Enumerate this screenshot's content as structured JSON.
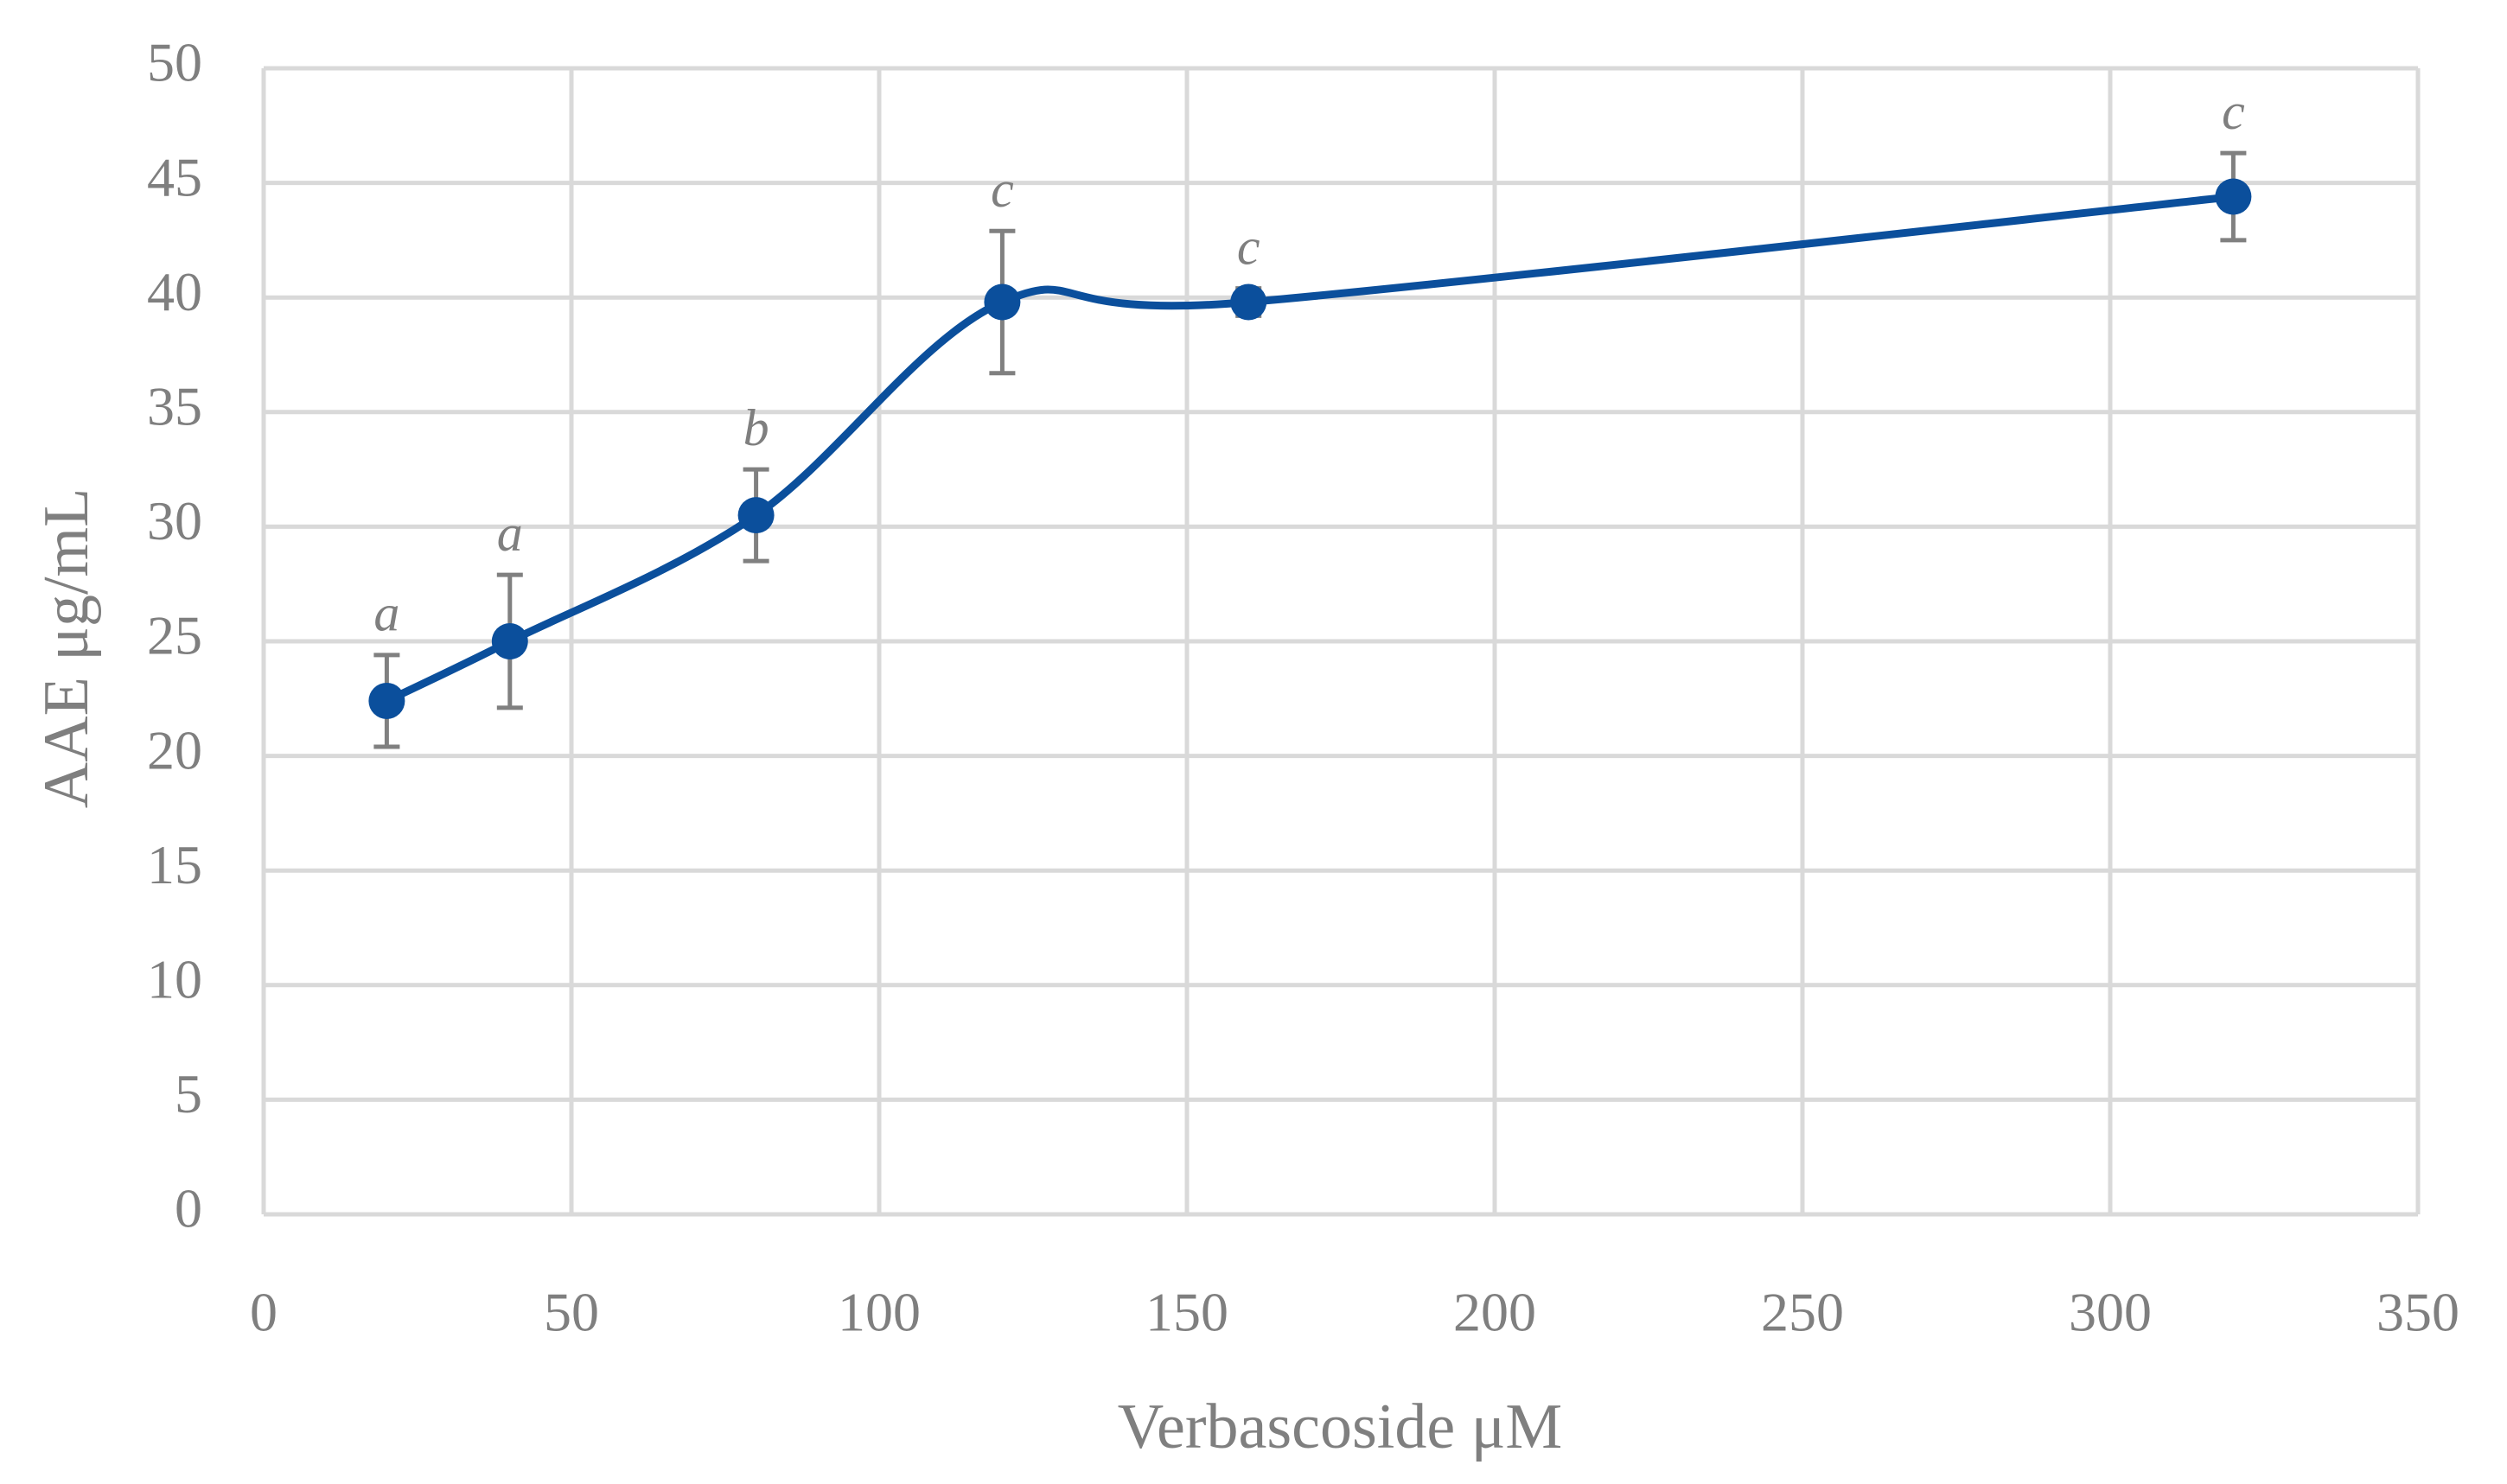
{
  "chart_data": {
    "type": "line",
    "smooth": true,
    "xlabel": "Verbascoside μM",
    "ylabel": "AAE μg/mL",
    "x": [
      20,
      40,
      80,
      120,
      160,
      320
    ],
    "values": [
      22.4,
      25.0,
      30.5,
      39.8,
      39.8,
      44.4
    ],
    "errors": [
      2.0,
      2.9,
      2.0,
      3.1,
      0.6,
      1.9
    ],
    "point_labels": [
      "a",
      "a",
      "b",
      "c",
      "c",
      "c"
    ],
    "color": "#0b4f9c",
    "error_color": "#808080",
    "xlim": [
      0,
      350
    ],
    "ylim": [
      0,
      50
    ],
    "xticks": [
      0,
      50,
      100,
      150,
      200,
      250,
      300,
      350
    ],
    "yticks": [
      0,
      5,
      10,
      15,
      20,
      25,
      30,
      35,
      40,
      45,
      50
    ],
    "grid": true
  }
}
